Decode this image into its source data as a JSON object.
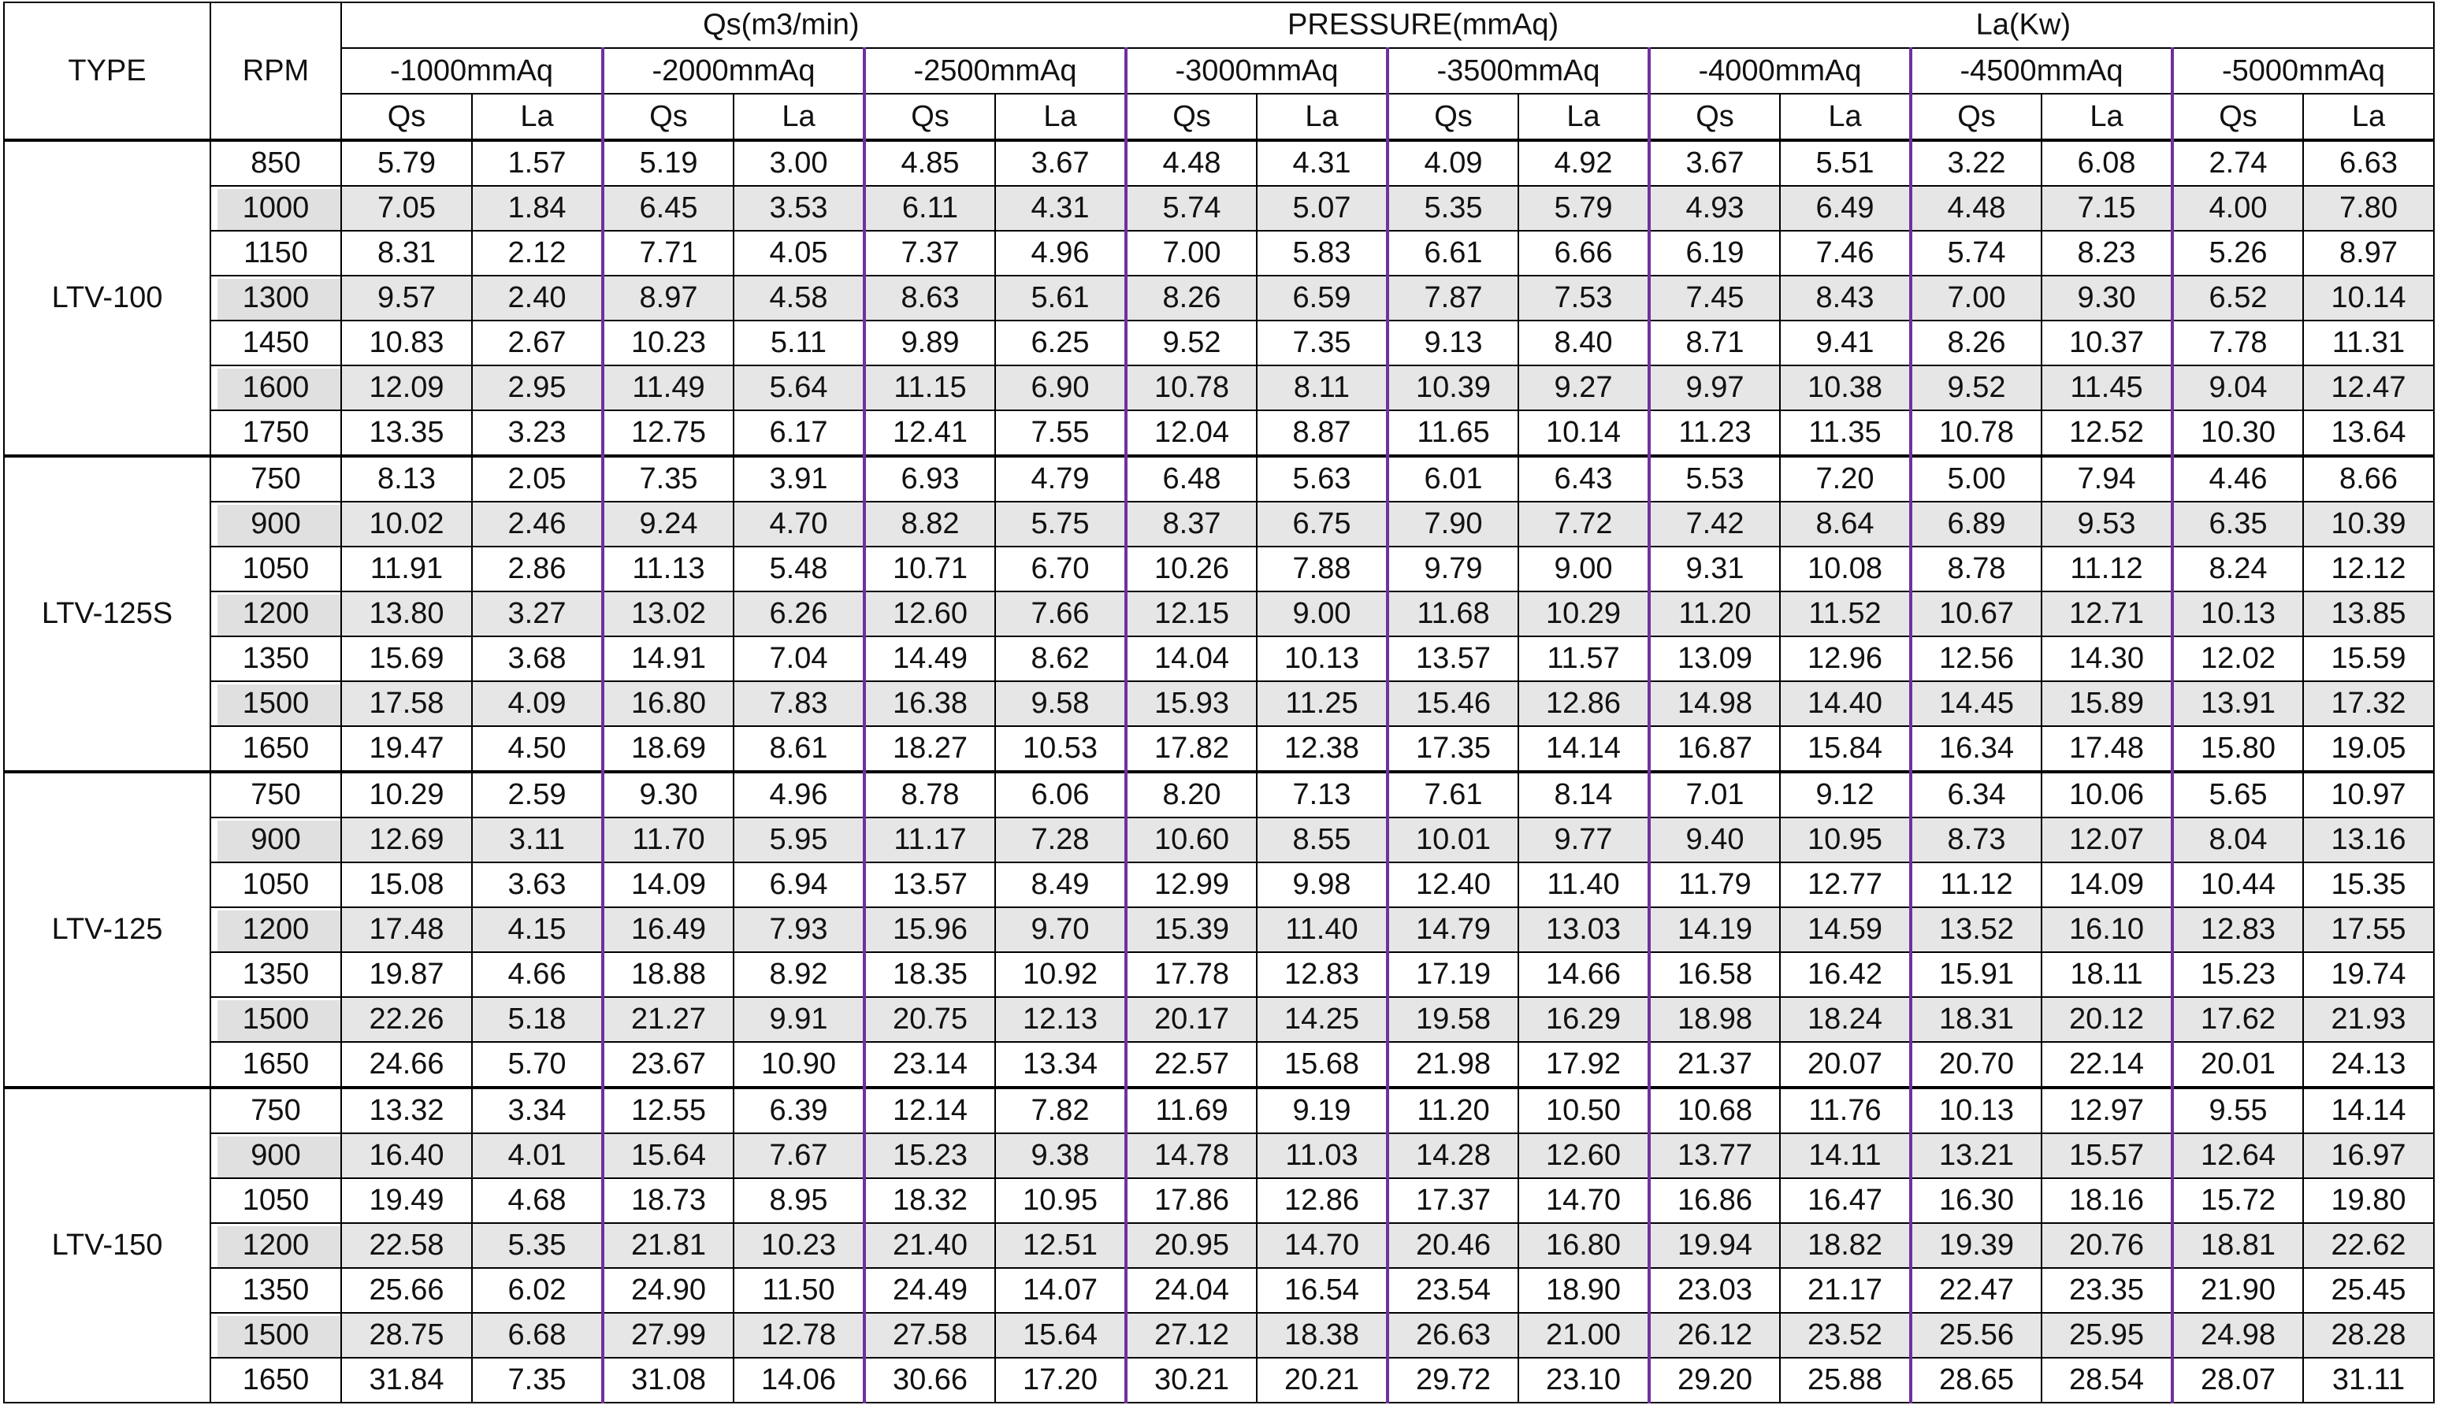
{
  "header": {
    "type": "TYPE",
    "rpm": "RPM",
    "top": [
      "Qs(m3/min)",
      "PRESSURE(mmAq)",
      "La(Kw)"
    ],
    "pressures": [
      "-1000mmAq",
      "-2000mmAq",
      "-2500mmAq",
      "-3000mmAq",
      "-3500mmAq",
      "-4000mmAq",
      "-4500mmAq",
      "-5000mmAq"
    ],
    "sub": [
      "Qs",
      "La"
    ]
  },
  "groups": [
    {
      "type": "LTV-100",
      "rows": [
        {
          "rpm": "850",
          "cells": [
            "5.79",
            "1.57",
            "5.19",
            "3.00",
            "4.85",
            "3.67",
            "4.48",
            "4.31",
            "4.09",
            "4.92",
            "3.67",
            "5.51",
            "3.22",
            "6.08",
            "2.74",
            "6.63"
          ]
        },
        {
          "rpm": "1000",
          "cells": [
            "7.05",
            "1.84",
            "6.45",
            "3.53",
            "6.11",
            "4.31",
            "5.74",
            "5.07",
            "5.35",
            "5.79",
            "4.93",
            "6.49",
            "4.48",
            "7.15",
            "4.00",
            "7.80"
          ]
        },
        {
          "rpm": "1150",
          "cells": [
            "8.31",
            "2.12",
            "7.71",
            "4.05",
            "7.37",
            "4.96",
            "7.00",
            "5.83",
            "6.61",
            "6.66",
            "6.19",
            "7.46",
            "5.74",
            "8.23",
            "5.26",
            "8.97"
          ]
        },
        {
          "rpm": "1300",
          "cells": [
            "9.57",
            "2.40",
            "8.97",
            "4.58",
            "8.63",
            "5.61",
            "8.26",
            "6.59",
            "7.87",
            "7.53",
            "7.45",
            "8.43",
            "7.00",
            "9.30",
            "6.52",
            "10.14"
          ]
        },
        {
          "rpm": "1450",
          "cells": [
            "10.83",
            "2.67",
            "10.23",
            "5.11",
            "9.89",
            "6.25",
            "9.52",
            "7.35",
            "9.13",
            "8.40",
            "8.71",
            "9.41",
            "8.26",
            "10.37",
            "7.78",
            "11.31"
          ]
        },
        {
          "rpm": "1600",
          "cells": [
            "12.09",
            "2.95",
            "11.49",
            "5.64",
            "11.15",
            "6.90",
            "10.78",
            "8.11",
            "10.39",
            "9.27",
            "9.97",
            "10.38",
            "9.52",
            "11.45",
            "9.04",
            "12.47"
          ]
        },
        {
          "rpm": "1750",
          "cells": [
            "13.35",
            "3.23",
            "12.75",
            "6.17",
            "12.41",
            "7.55",
            "12.04",
            "8.87",
            "11.65",
            "10.14",
            "11.23",
            "11.35",
            "10.78",
            "12.52",
            "10.30",
            "13.64"
          ]
        }
      ]
    },
    {
      "type": "LTV-125S",
      "rows": [
        {
          "rpm": "750",
          "cells": [
            "8.13",
            "2.05",
            "7.35",
            "3.91",
            "6.93",
            "4.79",
            "6.48",
            "5.63",
            "6.01",
            "6.43",
            "5.53",
            "7.20",
            "5.00",
            "7.94",
            "4.46",
            "8.66"
          ]
        },
        {
          "rpm": "900",
          "cells": [
            "10.02",
            "2.46",
            "9.24",
            "4.70",
            "8.82",
            "5.75",
            "8.37",
            "6.75",
            "7.90",
            "7.72",
            "7.42",
            "8.64",
            "6.89",
            "9.53",
            "6.35",
            "10.39"
          ]
        },
        {
          "rpm": "1050",
          "cells": [
            "11.91",
            "2.86",
            "11.13",
            "5.48",
            "10.71",
            "6.70",
            "10.26",
            "7.88",
            "9.79",
            "9.00",
            "9.31",
            "10.08",
            "8.78",
            "11.12",
            "8.24",
            "12.12"
          ]
        },
        {
          "rpm": "1200",
          "cells": [
            "13.80",
            "3.27",
            "13.02",
            "6.26",
            "12.60",
            "7.66",
            "12.15",
            "9.00",
            "11.68",
            "10.29",
            "11.20",
            "11.52",
            "10.67",
            "12.71",
            "10.13",
            "13.85"
          ]
        },
        {
          "rpm": "1350",
          "cells": [
            "15.69",
            "3.68",
            "14.91",
            "7.04",
            "14.49",
            "8.62",
            "14.04",
            "10.13",
            "13.57",
            "11.57",
            "13.09",
            "12.96",
            "12.56",
            "14.30",
            "12.02",
            "15.59"
          ]
        },
        {
          "rpm": "1500",
          "cells": [
            "17.58",
            "4.09",
            "16.80",
            "7.83",
            "16.38",
            "9.58",
            "15.93",
            "11.25",
            "15.46",
            "12.86",
            "14.98",
            "14.40",
            "14.45",
            "15.89",
            "13.91",
            "17.32"
          ]
        },
        {
          "rpm": "1650",
          "cells": [
            "19.47",
            "4.50",
            "18.69",
            "8.61",
            "18.27",
            "10.53",
            "17.82",
            "12.38",
            "17.35",
            "14.14",
            "16.87",
            "15.84",
            "16.34",
            "17.48",
            "15.80",
            "19.05"
          ]
        }
      ]
    },
    {
      "type": "LTV-125",
      "rows": [
        {
          "rpm": "750",
          "cells": [
            "10.29",
            "2.59",
            "9.30",
            "4.96",
            "8.78",
            "6.06",
            "8.20",
            "7.13",
            "7.61",
            "8.14",
            "7.01",
            "9.12",
            "6.34",
            "10.06",
            "5.65",
            "10.97"
          ]
        },
        {
          "rpm": "900",
          "cells": [
            "12.69",
            "3.11",
            "11.70",
            "5.95",
            "11.17",
            "7.28",
            "10.60",
            "8.55",
            "10.01",
            "9.77",
            "9.40",
            "10.95",
            "8.73",
            "12.07",
            "8.04",
            "13.16"
          ]
        },
        {
          "rpm": "1050",
          "cells": [
            "15.08",
            "3.63",
            "14.09",
            "6.94",
            "13.57",
            "8.49",
            "12.99",
            "9.98",
            "12.40",
            "11.40",
            "11.79",
            "12.77",
            "11.12",
            "14.09",
            "10.44",
            "15.35"
          ]
        },
        {
          "rpm": "1200",
          "cells": [
            "17.48",
            "4.15",
            "16.49",
            "7.93",
            "15.96",
            "9.70",
            "15.39",
            "11.40",
            "14.79",
            "13.03",
            "14.19",
            "14.59",
            "13.52",
            "16.10",
            "12.83",
            "17.55"
          ]
        },
        {
          "rpm": "1350",
          "cells": [
            "19.87",
            "4.66",
            "18.88",
            "8.92",
            "18.35",
            "10.92",
            "17.78",
            "12.83",
            "17.19",
            "14.66",
            "16.58",
            "16.42",
            "15.91",
            "18.11",
            "15.23",
            "19.74"
          ]
        },
        {
          "rpm": "1500",
          "cells": [
            "22.26",
            "5.18",
            "21.27",
            "9.91",
            "20.75",
            "12.13",
            "20.17",
            "14.25",
            "19.58",
            "16.29",
            "18.98",
            "18.24",
            "18.31",
            "20.12",
            "17.62",
            "21.93"
          ]
        },
        {
          "rpm": "1650",
          "cells": [
            "24.66",
            "5.70",
            "23.67",
            "10.90",
            "23.14",
            "13.34",
            "22.57",
            "15.68",
            "21.98",
            "17.92",
            "21.37",
            "20.07",
            "20.70",
            "22.14",
            "20.01",
            "24.13"
          ]
        }
      ]
    },
    {
      "type": "LTV-150",
      "rows": [
        {
          "rpm": "750",
          "cells": [
            "13.32",
            "3.34",
            "12.55",
            "6.39",
            "12.14",
            "7.82",
            "11.69",
            "9.19",
            "11.20",
            "10.50",
            "10.68",
            "11.76",
            "10.13",
            "12.97",
            "9.55",
            "14.14"
          ]
        },
        {
          "rpm": "900",
          "cells": [
            "16.40",
            "4.01",
            "15.64",
            "7.67",
            "15.23",
            "9.38",
            "14.78",
            "11.03",
            "14.28",
            "12.60",
            "13.77",
            "14.11",
            "13.21",
            "15.57",
            "12.64",
            "16.97"
          ]
        },
        {
          "rpm": "1050",
          "cells": [
            "19.49",
            "4.68",
            "18.73",
            "8.95",
            "18.32",
            "10.95",
            "17.86",
            "12.86",
            "17.37",
            "14.70",
            "16.86",
            "16.47",
            "16.30",
            "18.16",
            "15.72",
            "19.80"
          ]
        },
        {
          "rpm": "1200",
          "cells": [
            "22.58",
            "5.35",
            "21.81",
            "10.23",
            "21.40",
            "12.51",
            "20.95",
            "14.70",
            "20.46",
            "16.80",
            "19.94",
            "18.82",
            "19.39",
            "20.76",
            "18.81",
            "22.62"
          ]
        },
        {
          "rpm": "1350",
          "cells": [
            "25.66",
            "6.02",
            "24.90",
            "11.50",
            "24.49",
            "14.07",
            "24.04",
            "16.54",
            "23.54",
            "18.90",
            "23.03",
            "21.17",
            "22.47",
            "23.35",
            "21.90",
            "25.45"
          ]
        },
        {
          "rpm": "1500",
          "cells": [
            "28.75",
            "6.68",
            "27.99",
            "12.78",
            "27.58",
            "15.64",
            "27.12",
            "18.38",
            "26.63",
            "21.00",
            "26.12",
            "23.52",
            "25.56",
            "25.95",
            "24.98",
            "28.28"
          ]
        },
        {
          "rpm": "1650",
          "cells": [
            "31.84",
            "7.35",
            "31.08",
            "14.06",
            "30.66",
            "17.20",
            "30.21",
            "20.21",
            "29.72",
            "23.10",
            "29.20",
            "25.88",
            "28.65",
            "28.54",
            "28.07",
            "31.11"
          ]
        }
      ]
    }
  ]
}
